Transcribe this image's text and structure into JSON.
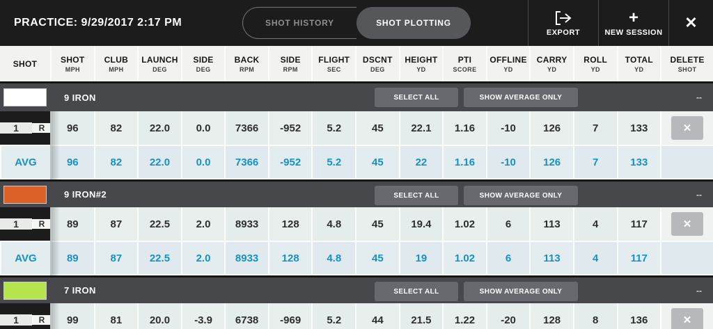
{
  "header": {
    "title": "PRACTICE: 9/29/2017 2:17 PM",
    "tabs": [
      {
        "label": "SHOT HISTORY",
        "active": false
      },
      {
        "label": "SHOT PLOTTING",
        "active": true
      }
    ],
    "export_label": "EXPORT",
    "new_session_label": "NEW SESSION",
    "plus_icon": "+",
    "close_icon": "✕"
  },
  "table": {
    "columns": [
      {
        "label": "SHOT",
        "sub": ""
      },
      {
        "label": "SHOT",
        "sub": "MPH"
      },
      {
        "label": "CLUB",
        "sub": "MPH"
      },
      {
        "label": "LAUNCH",
        "sub": "DEG"
      },
      {
        "label": "SIDE",
        "sub": "DEG"
      },
      {
        "label": "BACK",
        "sub": "RPM"
      },
      {
        "label": "SIDE",
        "sub": "RPM"
      },
      {
        "label": "FLIGHT",
        "sub": "SEC"
      },
      {
        "label": "DSCNT",
        "sub": "DEG"
      },
      {
        "label": "HEIGHT",
        "sub": "YD"
      },
      {
        "label": "PTI",
        "sub": "SCORE"
      },
      {
        "label": "OFFLINE",
        "sub": "YD"
      },
      {
        "label": "CARRY",
        "sub": "YD"
      },
      {
        "label": "ROLL",
        "sub": "YD"
      },
      {
        "label": "TOTAL",
        "sub": "YD"
      },
      {
        "label": "DELETE",
        "sub": "SHOT"
      }
    ],
    "group_controls": {
      "select_all": "SELECT ALL",
      "show_average_only": "SHOW AVERAGE ONLY",
      "dash": "--"
    },
    "delete_icon": "✕",
    "groups": [
      {
        "name": "9 IRON",
        "swatch_color": "#ffffff",
        "shots": [
          {
            "num": "1",
            "hand": "R",
            "values": [
              "96",
              "82",
              "22.0",
              "0.0",
              "7366",
              "-952",
              "5.2",
              "45",
              "22.1",
              "1.16",
              "-10",
              "126",
              "7",
              "133"
            ]
          }
        ],
        "avg": {
          "label": "AVG",
          "values": [
            "96",
            "82",
            "22.0",
            "0.0",
            "7366",
            "-952",
            "5.2",
            "45",
            "22",
            "1.16",
            "-10",
            "126",
            "7",
            "133"
          ]
        }
      },
      {
        "name": "9 IRON#2",
        "swatch_color": "#dc6128",
        "shots": [
          {
            "num": "1",
            "hand": "R",
            "values": [
              "89",
              "87",
              "22.5",
              "2.0",
              "8933",
              "128",
              "4.8",
              "45",
              "19.4",
              "1.02",
              "6",
              "113",
              "4",
              "117"
            ]
          }
        ],
        "avg": {
          "label": "AVG",
          "values": [
            "89",
            "87",
            "22.5",
            "2.0",
            "8933",
            "128",
            "4.8",
            "45",
            "19",
            "1.02",
            "6",
            "113",
            "4",
            "117"
          ]
        }
      },
      {
        "name": "7 IRON",
        "swatch_color": "#b5e44d",
        "shots": [
          {
            "num": "1",
            "hand": "R",
            "values": [
              "99",
              "81",
              "20.0",
              "-3.9",
              "6738",
              "-969",
              "5.2",
              "44",
              "21.5",
              "1.22",
              "-20",
              "128",
              "8",
              "136"
            ]
          }
        ],
        "avg": null
      }
    ]
  },
  "colors": {
    "accent_blue": "#1591c8",
    "group_bar": "#46484b",
    "topbar": "#1d1c1c"
  }
}
